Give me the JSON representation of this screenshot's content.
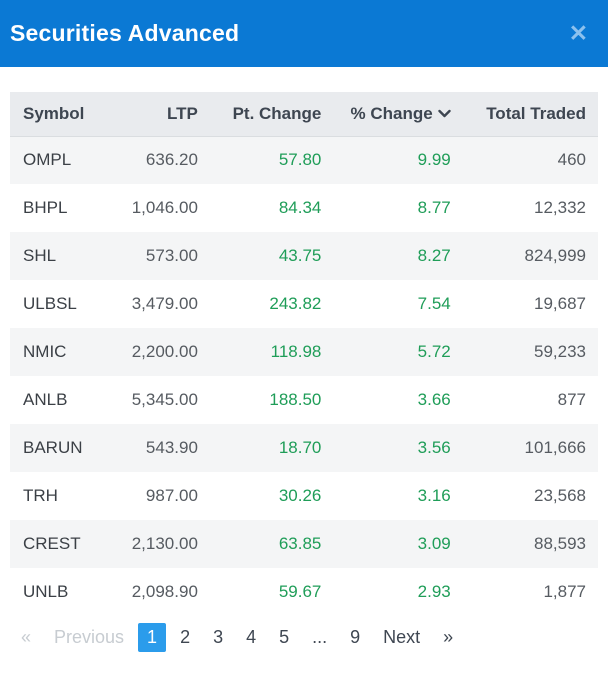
{
  "header": {
    "title": "Securities Advanced",
    "close_icon": "✕"
  },
  "table": {
    "columns": [
      {
        "label": "Symbol"
      },
      {
        "label": "LTP"
      },
      {
        "label": "Pt. Change"
      },
      {
        "label": "% Change"
      },
      {
        "label": "Total Traded"
      }
    ],
    "sort": {
      "column": "% Change",
      "direction": "desc"
    },
    "rows": [
      {
        "symbol": "OMPL",
        "ltp": "636.20",
        "pt_change": "57.80",
        "pct_change": "9.99",
        "total_traded": "460"
      },
      {
        "symbol": "BHPL",
        "ltp": "1,046.00",
        "pt_change": "84.34",
        "pct_change": "8.77",
        "total_traded": "12,332"
      },
      {
        "symbol": "SHL",
        "ltp": "573.00",
        "pt_change": "43.75",
        "pct_change": "8.27",
        "total_traded": "824,999"
      },
      {
        "symbol": "ULBSL",
        "ltp": "3,479.00",
        "pt_change": "243.82",
        "pct_change": "7.54",
        "total_traded": "19,687"
      },
      {
        "symbol": "NMIC",
        "ltp": "2,200.00",
        "pt_change": "118.98",
        "pct_change": "5.72",
        "total_traded": "59,233"
      },
      {
        "symbol": "ANLB",
        "ltp": "5,345.00",
        "pt_change": "188.50",
        "pct_change": "3.66",
        "total_traded": "877"
      },
      {
        "symbol": "BARUN",
        "ltp": "543.90",
        "pt_change": "18.70",
        "pct_change": "3.56",
        "total_traded": "101,666"
      },
      {
        "symbol": "TRH",
        "ltp": "987.00",
        "pt_change": "30.26",
        "pct_change": "3.16",
        "total_traded": "23,568"
      },
      {
        "symbol": "CREST",
        "ltp": "2,130.00",
        "pt_change": "63.85",
        "pct_change": "3.09",
        "total_traded": "88,593"
      },
      {
        "symbol": "UNLB",
        "ltp": "2,098.90",
        "pt_change": "59.67",
        "pct_change": "2.93",
        "total_traded": "1,877"
      }
    ]
  },
  "pagination": {
    "prev_arrow": "«",
    "prev_label": "Previous",
    "pages": [
      "1",
      "2",
      "3",
      "4",
      "5",
      "...",
      "9"
    ],
    "active_page": "1",
    "next_label": "Next",
    "next_arrow": "»"
  },
  "colors": {
    "header_bg": "#0b79d4",
    "close_icon": "#8cc1ee",
    "positive": "#1f9d58",
    "active_page_bg": "#2b9ceb",
    "table_header_bg": "#e9ebee",
    "row_alt_bg": "#f4f5f6"
  }
}
